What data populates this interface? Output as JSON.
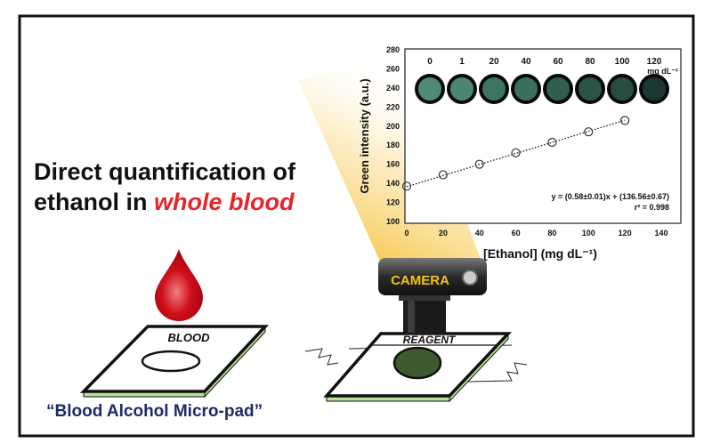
{
  "headline": {
    "line1": "Direct quantification of",
    "line2_prefix": "ethanol in ",
    "line2_emphasis": "whole blood"
  },
  "caption": "“Blood Alcohol Micro-pad”",
  "pad_labels": {
    "blood": "BLOOD",
    "reagent": "REAGENT"
  },
  "camera_label": "CAMERA",
  "colors": {
    "blood": "#d0101a",
    "reagent_spot": "#3e5a2e",
    "pad_edge": "#b6e39a",
    "emphasis": "#e8242a",
    "caption": "#1c2a6a",
    "beam": "#f6b718"
  },
  "chart_data": {
    "type": "scatter",
    "xlabel": "[Ethanol] (mg dL⁻¹)",
    "ylabel": "Green intensity (a.u.)",
    "xlim": [
      0,
      140
    ],
    "ylim": [
      100,
      280
    ],
    "xticks": [
      0,
      20,
      40,
      60,
      80,
      100,
      120,
      140
    ],
    "yticks": [
      100,
      120,
      140,
      160,
      180,
      200,
      220,
      240,
      260,
      280
    ],
    "x": [
      0,
      20,
      40,
      60,
      80,
      100,
      120
    ],
    "y": [
      137,
      149,
      160,
      172,
      183,
      194,
      206
    ],
    "fit": {
      "slope": 0.58,
      "intercept": 136.56,
      "equation": "y = (0.58±0.01)x + (136.56±0.67)",
      "r2": "r² = 0.998"
    },
    "swatches": {
      "labels": [
        "0",
        "1",
        "20",
        "40",
        "60",
        "80",
        "100",
        "120"
      ],
      "unit": "mg dL⁻¹",
      "colors": [
        "#4f8a74",
        "#4b8670",
        "#3d7560",
        "#3a6f5c",
        "#2f5f4f",
        "#2a5546",
        "#264d40",
        "#1c3731"
      ]
    }
  }
}
